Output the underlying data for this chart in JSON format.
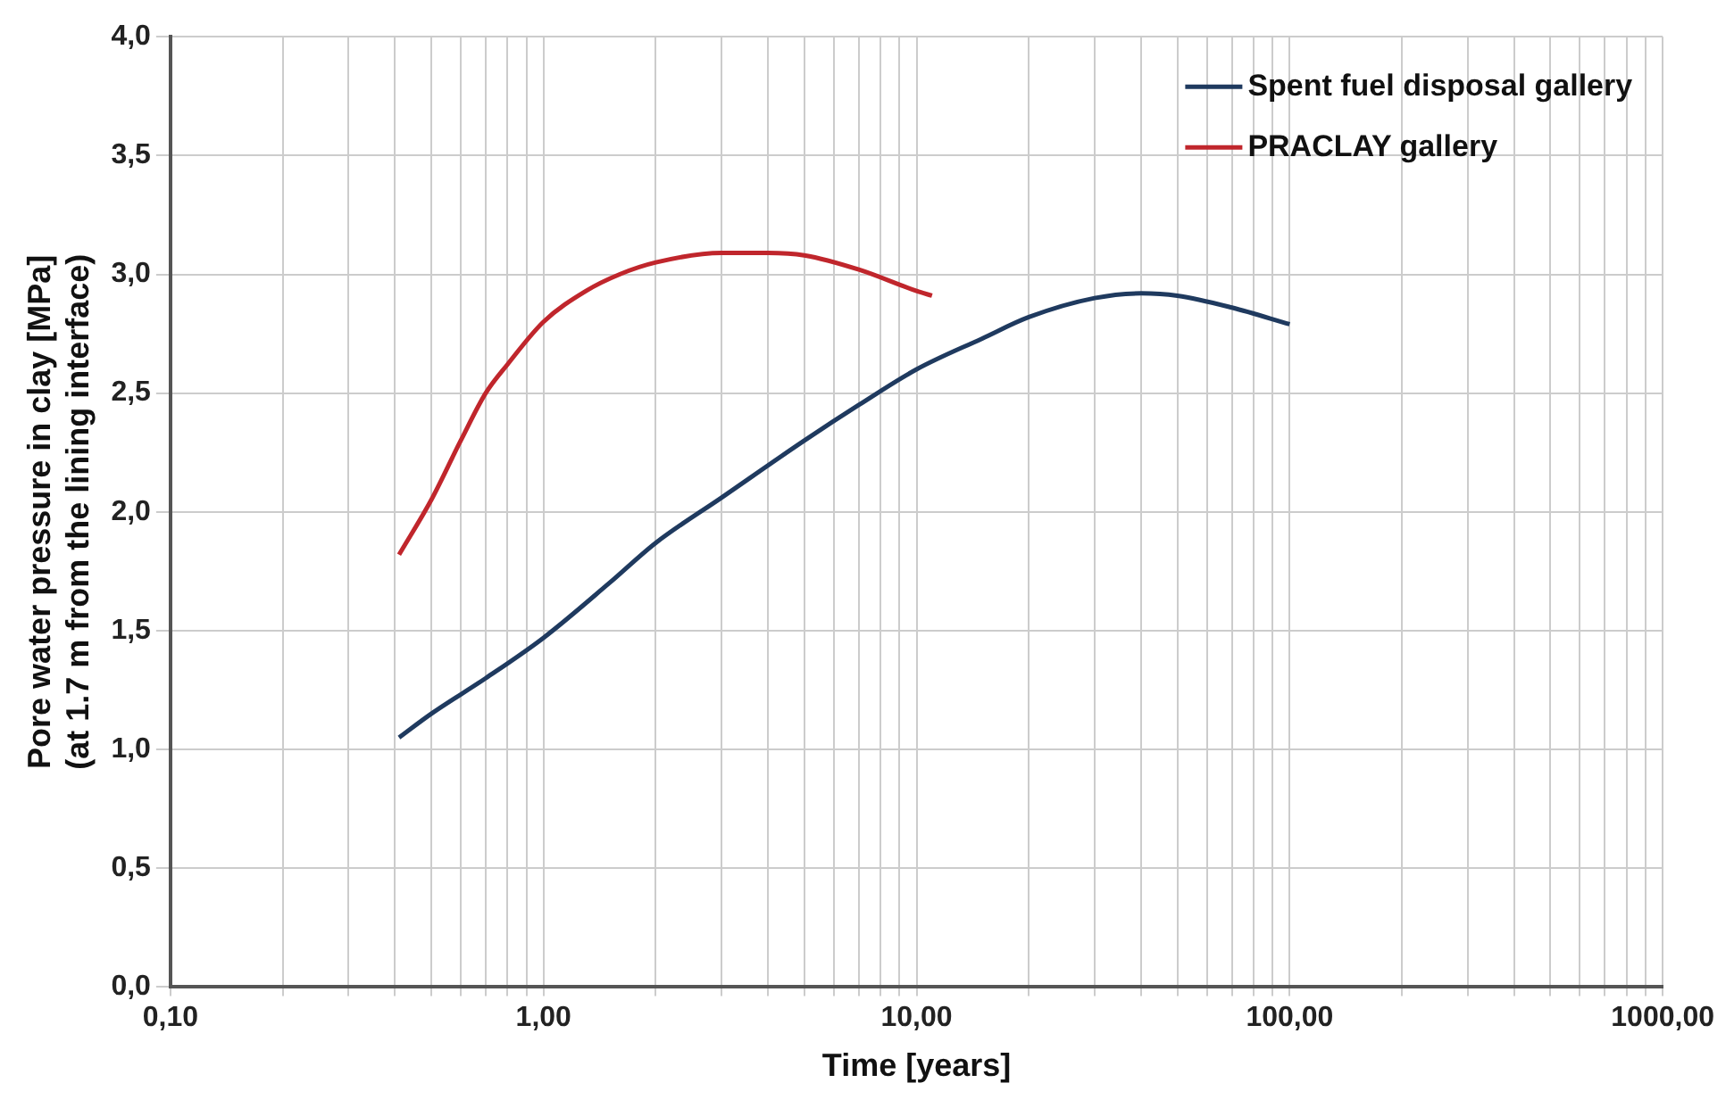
{
  "chart_data": {
    "type": "line",
    "xlabel": "Time [years]",
    "ylabel": "Pore water pressure in clay [MPa]\n(at 1.7 m from the lining interface)",
    "log": "x",
    "grid": true,
    "legend": "top right",
    "marker": "none",
    "line_style": "solid",
    "xlim": [
      0.1,
      1000
    ],
    "ylim": [
      0,
      4
    ],
    "xticks": [
      {
        "value": 0.1,
        "label": "0,10"
      },
      {
        "value": 0.2,
        "label": null
      },
      {
        "value": 0.3,
        "label": null
      },
      {
        "value": 0.4,
        "label": null
      },
      {
        "value": 0.5,
        "label": null
      },
      {
        "value": 0.6,
        "label": null
      },
      {
        "value": 0.7,
        "label": null
      },
      {
        "value": 0.8,
        "label": null
      },
      {
        "value": 0.9,
        "label": null
      },
      {
        "value": 1,
        "label": "1,00"
      },
      {
        "value": 2,
        "label": null
      },
      {
        "value": 3,
        "label": null
      },
      {
        "value": 4,
        "label": null
      },
      {
        "value": 5,
        "label": null
      },
      {
        "value": 6,
        "label": null
      },
      {
        "value": 7,
        "label": null
      },
      {
        "value": 8,
        "label": null
      },
      {
        "value": 9,
        "label": null
      },
      {
        "value": 10,
        "label": "10,00"
      },
      {
        "value": 20,
        "label": null
      },
      {
        "value": 30,
        "label": null
      },
      {
        "value": 40,
        "label": null
      },
      {
        "value": 50,
        "label": null
      },
      {
        "value": 60,
        "label": null
      },
      {
        "value": 70,
        "label": null
      },
      {
        "value": 80,
        "label": null
      },
      {
        "value": 90,
        "label": null
      },
      {
        "value": 100,
        "label": "100,00"
      },
      {
        "value": 200,
        "label": null
      },
      {
        "value": 300,
        "label": null
      },
      {
        "value": 400,
        "label": null
      },
      {
        "value": 500,
        "label": null
      },
      {
        "value": 600,
        "label": null
      },
      {
        "value": 700,
        "label": null
      },
      {
        "value": 800,
        "label": null
      },
      {
        "value": 900,
        "label": null
      },
      {
        "value": 1000,
        "label": "1000,00"
      }
    ],
    "yticks": [
      {
        "value": 0,
        "label": "0,0"
      },
      {
        "value": 0.5,
        "label": "0,5"
      },
      {
        "value": 1,
        "label": "1,0"
      },
      {
        "value": 1.5,
        "label": "1,5"
      },
      {
        "value": 2,
        "label": "2,0"
      },
      {
        "value": 2.5,
        "label": "2,5"
      },
      {
        "value": 3,
        "label": "3,0"
      },
      {
        "value": 3.5,
        "label": "3,5"
      },
      {
        "value": 4,
        "label": "4,0"
      }
    ],
    "series": [
      {
        "name": "Spent fuel disposal gallery",
        "color": "#1f3a5f",
        "x": [
          0.41,
          0.5,
          0.7,
          1,
          1.5,
          2,
          3,
          5,
          7,
          10,
          15,
          20,
          30,
          40,
          50,
          70,
          100
        ],
        "values": [
          1.05,
          1.15,
          1.3,
          1.47,
          1.7,
          1.87,
          2.06,
          2.3,
          2.45,
          2.6,
          2.73,
          2.82,
          2.9,
          2.92,
          2.91,
          2.86,
          2.79
        ]
      },
      {
        "name": "PRACLAY gallery",
        "color": "#c0262c",
        "x": [
          0.41,
          0.5,
          0.6,
          0.7,
          0.8,
          1,
          1.3,
          1.6,
          2,
          3,
          4,
          5,
          7,
          10,
          11
        ],
        "values": [
          1.82,
          2.05,
          2.3,
          2.5,
          2.62,
          2.8,
          2.93,
          3.0,
          3.05,
          3.09,
          3.09,
          3.08,
          3.02,
          2.93,
          2.91
        ]
      }
    ]
  }
}
